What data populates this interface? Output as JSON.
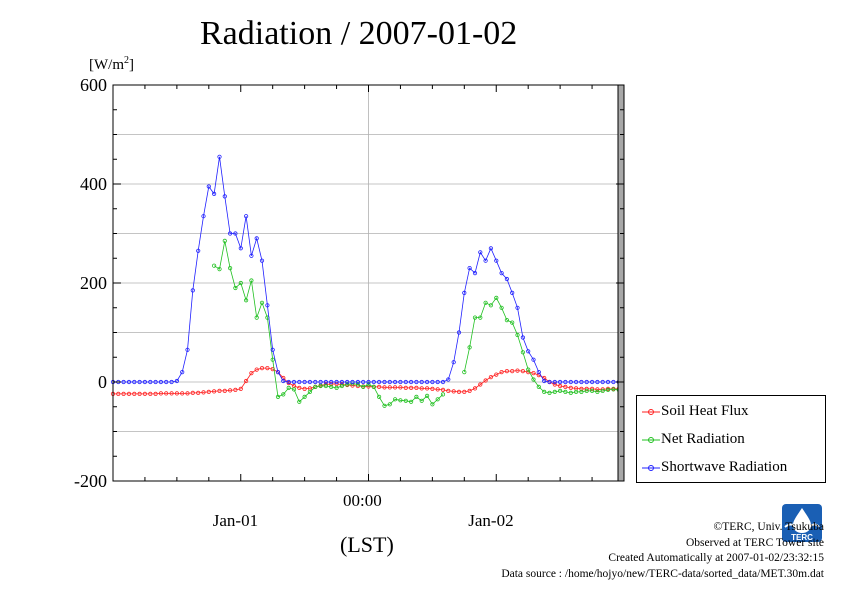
{
  "title": "Radiation / 2007-01-02",
  "y_unit": "[W/m",
  "y_unit_sup": "2",
  "y_unit_close": "]",
  "x_center_label": "00:00",
  "x_unit_label": "(LST)",
  "credits": {
    "line1": "©TERC, Univ. Tsukuba",
    "line2": "Observed at TERC Tower site",
    "line3": "Created Automatically at 2007-01-02/23:32:15",
    "line4": "Data source : /home/hojyo/new/TERC-data/sorted_data/MET.30m.dat"
  },
  "logo_text": "TERC",
  "chart_data": {
    "type": "line",
    "title": "Radiation / 2007-01-02",
    "ylabel": "[W/m2]",
    "xlabel": "(LST)",
    "ylim": [
      -200,
      600
    ],
    "yticks": [
      -200,
      0,
      200,
      400,
      600
    ],
    "x_unit": "hours from 2007-01-01 00:00",
    "xlim": [
      0,
      48
    ],
    "day_labels": [
      {
        "label": "Jan-01",
        "x": 12
      },
      {
        "label": "Jan-02",
        "x": 36
      }
    ],
    "grid": true,
    "legend_position": "outside-right",
    "colors": {
      "soil": "#ff2020",
      "net": "#20c020",
      "shortwave": "#2020ff",
      "frame": "#000000"
    },
    "series": [
      {
        "name": "Soil Heat Flux",
        "color": "#ff2020",
        "x": [
          0,
          0.5,
          1,
          1.5,
          2,
          2.5,
          3,
          3.5,
          4,
          4.5,
          5,
          5.5,
          6,
          6.5,
          7,
          7.5,
          8,
          8.5,
          9,
          9.5,
          10,
          10.5,
          11,
          11.5,
          12,
          12.5,
          13,
          13.5,
          14,
          14.5,
          15,
          15.5,
          16,
          16.5,
          17,
          17.5,
          18,
          18.5,
          19,
          19.5,
          20,
          20.5,
          21,
          21.5,
          22,
          22.5,
          23,
          23.5,
          24,
          24.5,
          25,
          25.5,
          26,
          26.5,
          27,
          27.5,
          28,
          28.5,
          29,
          29.5,
          30,
          30.5,
          31,
          31.5,
          32,
          32.5,
          33,
          33.5,
          34,
          34.5,
          35,
          35.5,
          36,
          36.5,
          37,
          37.5,
          38,
          38.5,
          39,
          39.5,
          40,
          40.5,
          41,
          41.5,
          42,
          42.5,
          43,
          43.5,
          44,
          44.5,
          45,
          45.5,
          46,
          46.5,
          47,
          47.5
        ],
        "values": [
          -24,
          -24,
          -24,
          -24,
          -24,
          -24,
          -24,
          -24,
          -24,
          -23,
          -23,
          -23,
          -23,
          -23,
          -23,
          -22,
          -22,
          -21,
          -20,
          -19,
          -18,
          -18,
          -17,
          -16,
          -14,
          2,
          18,
          25,
          28,
          28,
          26,
          20,
          8,
          -2,
          -8,
          -12,
          -14,
          -13,
          -10,
          -7,
          -5,
          -4,
          -4,
          -5,
          -6,
          -7,
          -8,
          -9,
          -9,
          -10,
          -10,
          -11,
          -11,
          -11,
          -11,
          -12,
          -12,
          -12,
          -13,
          -13,
          -14,
          -15,
          -16,
          -18,
          -19,
          -20,
          -20,
          -18,
          -13,
          -5,
          3,
          10,
          15,
          20,
          22,
          22,
          23,
          22,
          20,
          18,
          14,
          8,
          0,
          -5,
          -8,
          -10,
          -12,
          -13,
          -14,
          -14,
          -14,
          -15,
          -15,
          -14,
          -14,
          -14
        ]
      },
      {
        "name": "Net Radiation",
        "color": "#20c020",
        "x": [
          9.5,
          10,
          10.5,
          11,
          11.5,
          12,
          12.5,
          13,
          13.5,
          14,
          14.5,
          15,
          15.5,
          16,
          16.5,
          17,
          17.5,
          18,
          18.5,
          19,
          19.5,
          20,
          20.5,
          21,
          21.5,
          22,
          22.5,
          23,
          23.5,
          24,
          24.5,
          25,
          25.5,
          26,
          26.5,
          27,
          27.5,
          28,
          28.5,
          29,
          29.5,
          30,
          30.5,
          31,
          33,
          33.5,
          34,
          34.5,
          35,
          35.5,
          36,
          36.5,
          37,
          37.5,
          38,
          38.5,
          39,
          39.5,
          40,
          40.5,
          41,
          41.5,
          42,
          42.5,
          43,
          43.5,
          44,
          44.5,
          45,
          45.5,
          46,
          46.5,
          47,
          47.5
        ],
        "values": [
          235,
          228,
          285,
          230,
          190,
          200,
          165,
          205,
          130,
          160,
          130,
          45,
          -30,
          -25,
          -12,
          -15,
          -40,
          -30,
          -20,
          -10,
          -8,
          -8,
          -10,
          -12,
          -8,
          -5,
          -3,
          -5,
          -10,
          -5,
          -10,
          -30,
          -48,
          -45,
          -35,
          -37,
          -38,
          -40,
          -30,
          -38,
          -28,
          -45,
          -35,
          -25,
          20,
          70,
          130,
          130,
          160,
          155,
          170,
          150,
          125,
          120,
          95,
          60,
          25,
          5,
          -10,
          -20,
          -22,
          -20,
          -18,
          -20,
          -22,
          -20,
          -20,
          -18,
          -18,
          -20,
          -18,
          -16,
          -15,
          -16
        ]
      },
      {
        "name": "Shortwave Radiation",
        "color": "#2020ff",
        "x": [
          0,
          0.5,
          1,
          1.5,
          2,
          2.5,
          3,
          3.5,
          4,
          4.5,
          5,
          5.5,
          6,
          6.5,
          7,
          7.5,
          8,
          8.5,
          9,
          9.5,
          10,
          10.5,
          11,
          11.5,
          12,
          12.5,
          13,
          13.5,
          14,
          14.5,
          15,
          15.5,
          16,
          16.5,
          17,
          17.5,
          18,
          18.5,
          19,
          19.5,
          20,
          20.5,
          21,
          21.5,
          22,
          22.5,
          23,
          23.5,
          24,
          24.5,
          25,
          25.5,
          26,
          26.5,
          27,
          27.5,
          28,
          28.5,
          29,
          29.5,
          30,
          30.5,
          31,
          31.5,
          32,
          32.5,
          33,
          33.5,
          34,
          34.5,
          35,
          35.5,
          36,
          36.5,
          37,
          37.5,
          38,
          38.5,
          39,
          39.5,
          40,
          40.5,
          41,
          41.5,
          42,
          42.5,
          43,
          43.5,
          44,
          44.5,
          45,
          45.5,
          46,
          46.5,
          47,
          47.5
        ],
        "values": [
          0,
          0,
          0,
          0,
          0,
          0,
          0,
          0,
          0,
          0,
          0,
          0,
          2,
          20,
          65,
          185,
          265,
          335,
          395,
          380,
          455,
          375,
          300,
          300,
          270,
          335,
          255,
          290,
          245,
          155,
          65,
          20,
          2,
          0,
          0,
          0,
          0,
          0,
          0,
          0,
          0,
          0,
          0,
          0,
          0,
          0,
          0,
          0,
          0,
          0,
          0,
          0,
          0,
          0,
          0,
          0,
          0,
          0,
          0,
          0,
          0,
          0,
          0,
          5,
          40,
          100,
          180,
          230,
          220,
          262,
          245,
          270,
          245,
          220,
          208,
          180,
          150,
          90,
          62,
          45,
          20,
          2,
          0,
          0,
          0,
          0,
          0,
          0,
          0,
          0,
          0,
          0,
          0,
          0,
          0,
          0
        ]
      }
    ]
  }
}
